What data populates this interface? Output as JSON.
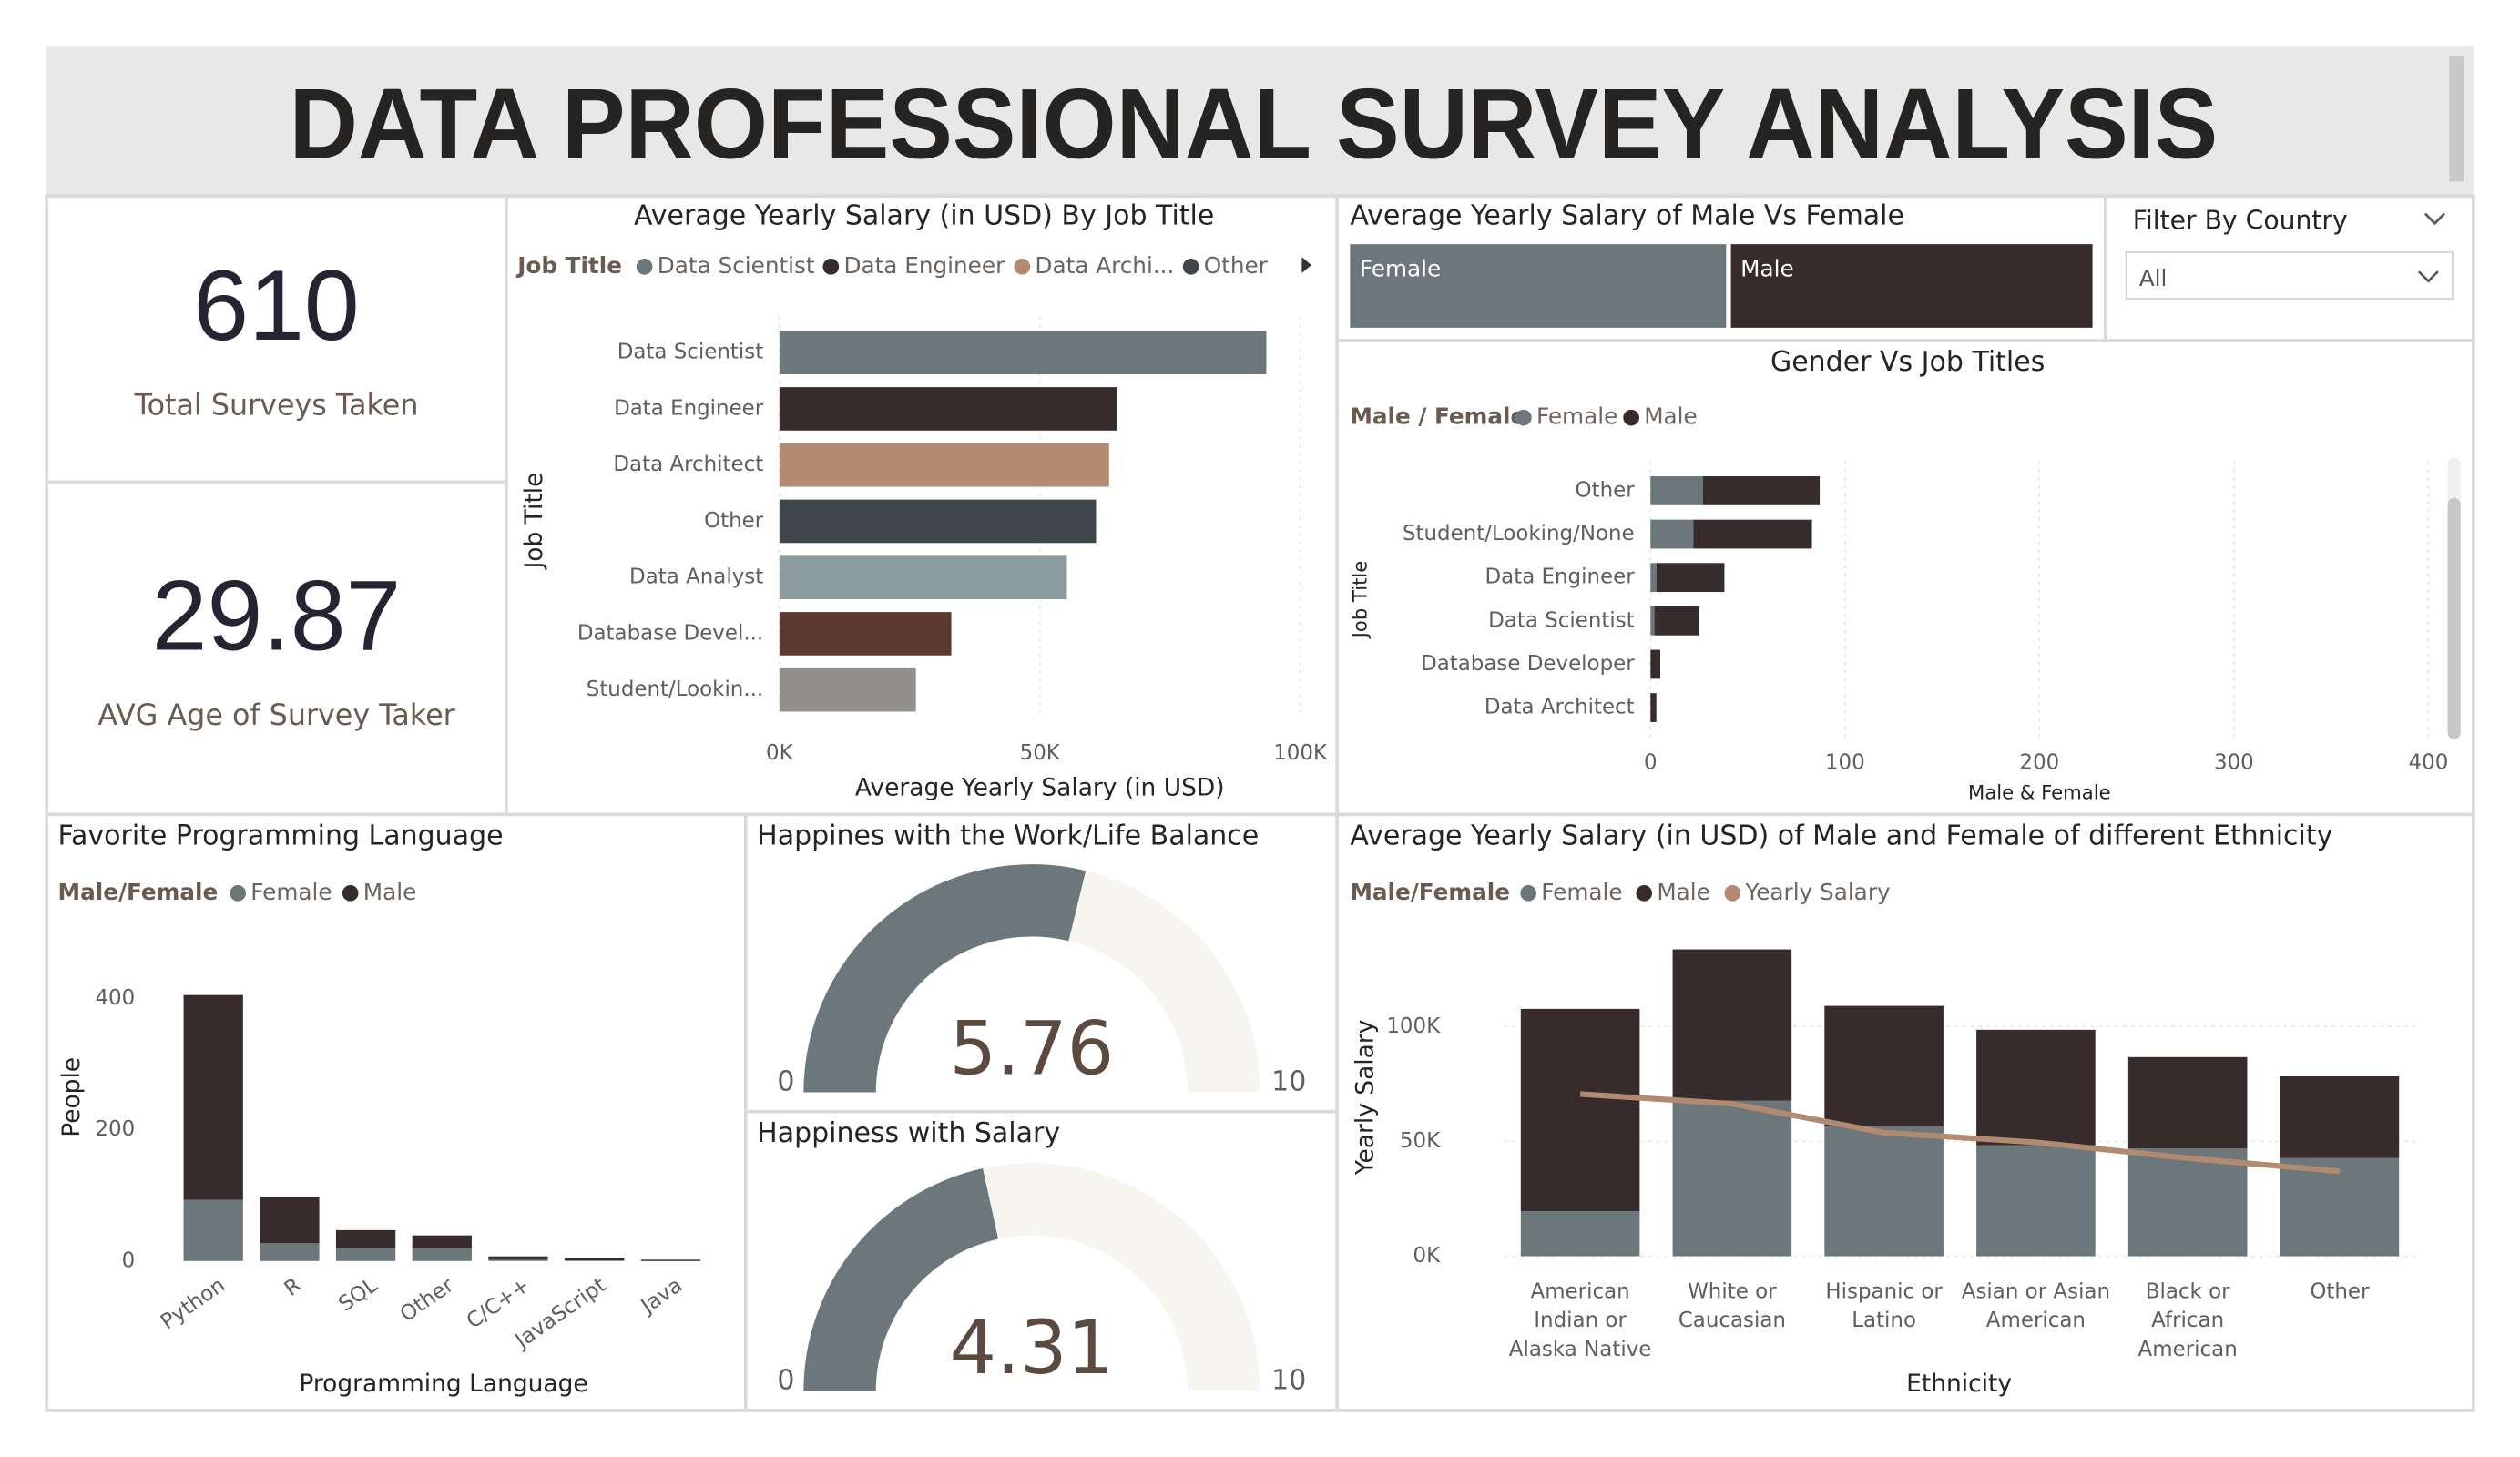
{
  "title": "DATA PROFESSIONAL SURVEY ANALYSIS",
  "kpis": [
    {
      "value": 610,
      "label": "Total Surveys Taken"
    },
    {
      "value": 29.87,
      "label": "AVG Age of Survey Taker"
    }
  ],
  "filter": {
    "title": "Filter By Country",
    "selected": "All"
  },
  "chart_data": [
    {
      "type": "bar",
      "orientation": "horizontal",
      "title": "Average Yearly Salary (in USD) By Job Title",
      "legend_title": "Job Title",
      "legend": [
        "Data Scientist",
        "Data Engineer",
        "Data Archi...",
        "Other"
      ],
      "categories": [
        "Data Scientist",
        "Data Engineer",
        "Data Architect",
        "Other",
        "Data Analyst",
        "Database Devel...",
        "Student/Lookin..."
      ],
      "values": [
        93500,
        64800,
        63300,
        60800,
        55200,
        33000,
        26200
      ],
      "colors": [
        "#6b777b",
        "#372b2b",
        "#b38b72",
        "#3e4649",
        "#8a9a9e",
        "#5b3a31",
        "#918f8a"
      ],
      "xlim": [
        0,
        100000
      ],
      "xticks": [
        {
          "value": 0,
          "label": "0K"
        },
        {
          "value": 50000,
          "label": "50K"
        },
        {
          "value": 100000,
          "label": "100K"
        }
      ],
      "x_label": "Average Yearly Salary (in USD)",
      "y_label": "Job Title",
      "grid": true
    },
    {
      "type": "bar",
      "orientation": "horizontal",
      "normalized": true,
      "title": "Average Yearly Salary of Male Vs Female",
      "categories": [
        "Female",
        "Male"
      ],
      "values": [
        64600,
        62100
      ],
      "colors": [
        "#6b777b",
        "#372b2b"
      ]
    },
    {
      "type": "stacked_bar",
      "orientation": "horizontal",
      "title": "Gender Vs Job Titles",
      "legend_title": "Male / Female",
      "categories": [
        "Other",
        "Student/Looking/None",
        "Data Engineer",
        "Data Scientist",
        "Database Developer",
        "Data Architect"
      ],
      "series": [
        {
          "name": "Female",
          "color": "#6b777b",
          "values": [
            27,
            22,
            3,
            2,
            0,
            0
          ]
        },
        {
          "name": "Male",
          "color": "#372b2b",
          "values": [
            60,
            61,
            35,
            23,
            5,
            3
          ]
        }
      ],
      "xlim": [
        0,
        400
      ],
      "xticks": [
        0,
        100,
        200,
        300,
        400
      ],
      "x_label": "Male & Female",
      "y_label": "Job Title",
      "grid": true
    },
    {
      "type": "stacked_bar",
      "orientation": "vertical",
      "title": "Favorite Programming Language",
      "legend_title": "Male/Female",
      "categories": [
        "Python",
        "R",
        "SQL",
        "Other",
        "C/C++",
        "JavaScript",
        "Java"
      ],
      "series": [
        {
          "name": "Female",
          "color": "#6b777b",
          "values": [
            93,
            27,
            20,
            20,
            2,
            1,
            0
          ]
        },
        {
          "name": "Male",
          "color": "#372b2b",
          "values": [
            312,
            71,
            27,
            19,
            5,
            4,
            2
          ]
        }
      ],
      "ylim": [
        0,
        450
      ],
      "yticks": [
        0,
        200,
        400
      ],
      "x_label": "Programming Language",
      "y_label": "People",
      "grid": false
    },
    {
      "type": "gauge",
      "title": "Happines with the Work/Life Balance",
      "value": 5.76,
      "min": 0,
      "max": 10,
      "color": "#6b777b",
      "track_color": "#f7f5ef"
    },
    {
      "type": "gauge",
      "title": "Happiness with Salary",
      "value": 4.31,
      "min": 0,
      "max": 10,
      "color": "#6b777b",
      "track_color": "#f7f5ef"
    },
    {
      "type": "combo",
      "title": "Average Yearly Salary (in USD) of Male and Female of different Ethnicity",
      "legend_title": "Male/Female",
      "categories": [
        "American Indian or Alaska Native",
        "White or Caucasian",
        "Hispanic or Latino",
        "Asian or Asian American",
        "Black or African American",
        "Other"
      ],
      "series": [
        {
          "name": "Female",
          "color": "#6b777b",
          "kind": "bar",
          "values": [
            19600,
            67800,
            56600,
            48300,
            46900,
            42700
          ]
        },
        {
          "name": "Male",
          "color": "#372b2b",
          "kind": "bar",
          "values": [
            88100,
            65800,
            52400,
            50300,
            39800,
            35600
          ]
        },
        {
          "name": "Yearly Salary",
          "color": "#b08b72",
          "kind": "line",
          "values": [
            70600,
            66400,
            53800,
            49600,
            42700,
            37000
          ]
        }
      ],
      "ylim": [
        0,
        135000
      ],
      "yticks": [
        {
          "value": 0,
          "label": "0K"
        },
        {
          "value": 50000,
          "label": "50K"
        },
        {
          "value": 100000,
          "label": "100K"
        }
      ],
      "x_label": "Ethnicity",
      "y_label": "Yearly Salary",
      "grid": true
    }
  ]
}
